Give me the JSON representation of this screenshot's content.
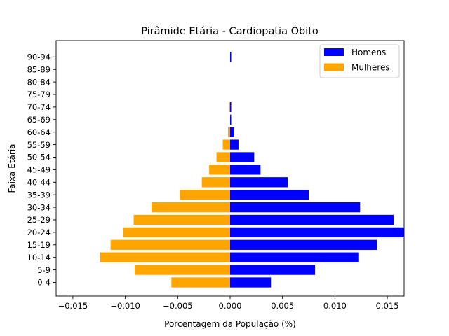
{
  "chart_data": {
    "type": "bar",
    "orientation": "horizontal",
    "title": "Pirâmide Etária - Cardiopatia Óbito",
    "xlabel": "Porcentagem da População (%)",
    "ylabel": "Faixa Etária",
    "xlim": [
      -0.0166,
      0.0166
    ],
    "xticks": [
      -0.015,
      -0.01,
      -0.005,
      0.0,
      0.005,
      0.01,
      0.015
    ],
    "xtick_labels": [
      "−0.015",
      "−0.010",
      "−0.005",
      "0.000",
      "0.005",
      "0.010",
      "0.015"
    ],
    "categories": [
      "0-4",
      "5-9",
      "10-14",
      "15-19",
      "20-24",
      "25-29",
      "30-34",
      "35-39",
      "40-44",
      "45-49",
      "50-54",
      "55-59",
      "60-64",
      "65-69",
      "70-74",
      "75-79",
      "80-84",
      "85-89",
      "90-94"
    ],
    "series": [
      {
        "name": "Homens",
        "color": "#0000ff",
        "values": [
          0.0039,
          0.0081,
          0.0123,
          0.014,
          0.0166,
          0.0156,
          0.0124,
          0.0075,
          0.0055,
          0.0029,
          0.0023,
          0.0008,
          0.0004,
          0.0001,
          0.0001,
          0.0,
          0.0,
          0.0,
          0.0001
        ]
      },
      {
        "name": "Mulheres",
        "color": "#ffa500",
        "values": [
          -0.0056,
          -0.0091,
          -0.0124,
          -0.0114,
          -0.0102,
          -0.0092,
          -0.0075,
          -0.0048,
          -0.0027,
          -0.002,
          -0.0013,
          -0.0007,
          -0.0002,
          0.0,
          -0.0001,
          0.0,
          0.0,
          0.0,
          0.0
        ]
      }
    ],
    "legend_position": "top-right",
    "grid": false
  }
}
